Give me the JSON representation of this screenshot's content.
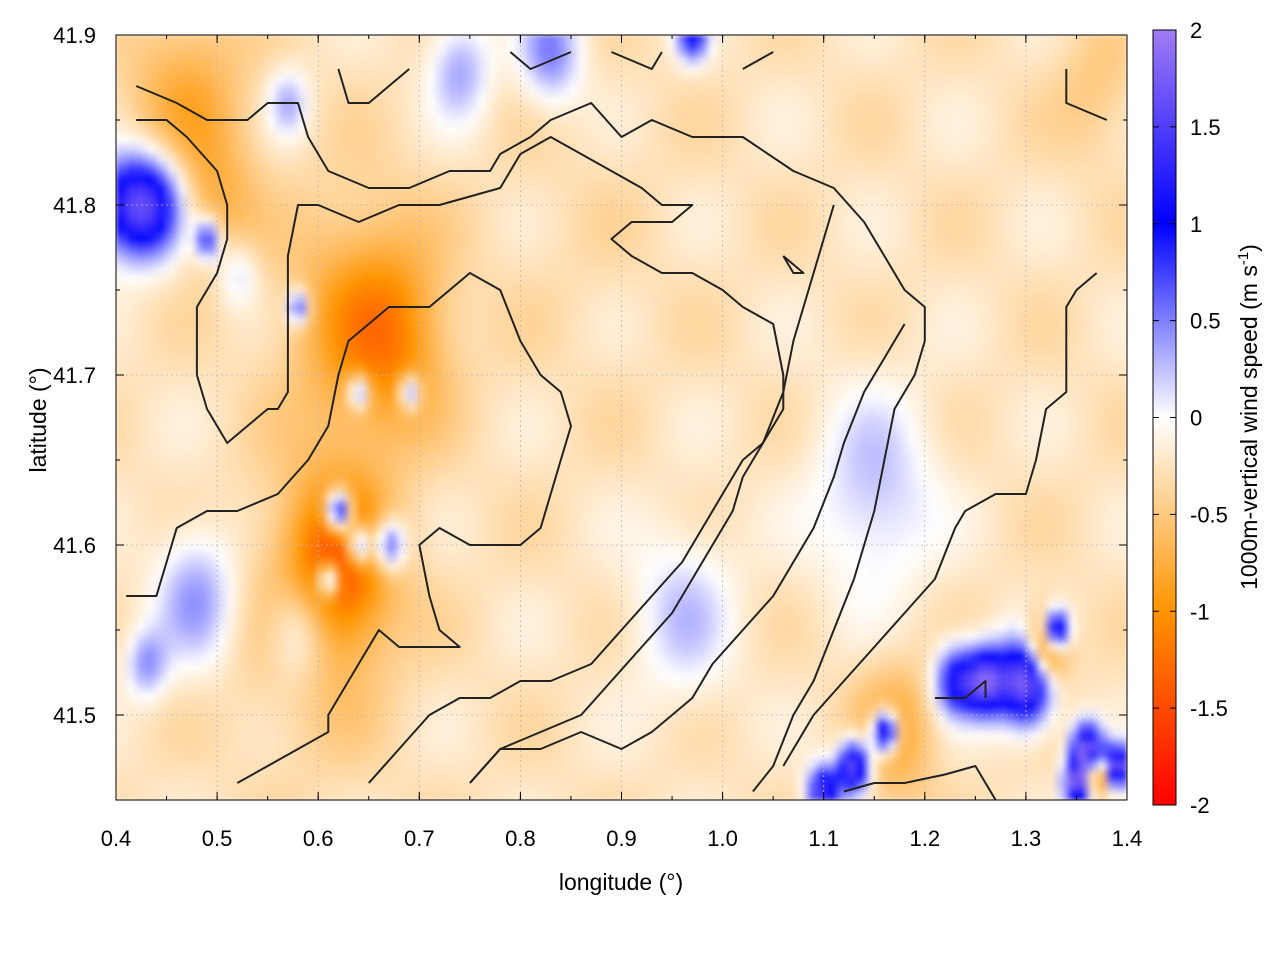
{
  "chart_data": {
    "type": "heatmap",
    "xlabel": "longitude (°)",
    "ylabel": "latitude (°)",
    "colorbar_label": "1000m-vertical wind speed (m s",
    "colorbar_label_superscript": "-1",
    "colorbar_label_suffix": ")",
    "xlim": [
      0.4,
      1.4
    ],
    "ylim": [
      41.45,
      41.9
    ],
    "clim": [
      -2,
      2
    ],
    "x_ticks": [
      "0.4",
      "0.5",
      "0.6",
      "0.7",
      "0.8",
      "0.9",
      "1.0",
      "1.1",
      "1.2",
      "1.3",
      "1.4"
    ],
    "x_tick_values": [
      0.4,
      0.5,
      0.6,
      0.7,
      0.8,
      0.9,
      1.0,
      1.1,
      1.2,
      1.3,
      1.4
    ],
    "y_ticks": [
      "41.5",
      "41.6",
      "41.7",
      "41.8",
      "41.9"
    ],
    "y_tick_values": [
      41.5,
      41.6,
      41.7,
      41.8,
      41.9
    ],
    "colorbar_ticks": [
      "2",
      "1.5",
      "1",
      "0.5",
      "0",
      "-0.5",
      "-1",
      "-1.5",
      "-2"
    ],
    "colorbar_tick_values": [
      2,
      1.5,
      1,
      0.5,
      0,
      -0.5,
      -1,
      -1.5,
      -2
    ],
    "grid": true,
    "colormap": [
      "#ff0000",
      "#ff9400",
      "#ffffff",
      "#0000ff",
      "#a07cf4"
    ],
    "background_value": -0.25,
    "anomalies": [
      {
        "lon": 0.47,
        "lat": 41.86,
        "r": 0.06,
        "v": -0.75
      },
      {
        "lon": 0.5,
        "lat": 41.8,
        "r": 0.04,
        "v": -0.6
      },
      {
        "lon": 0.64,
        "lat": 41.73,
        "r": 0.07,
        "v": -0.9
      },
      {
        "lon": 0.68,
        "lat": 41.72,
        "r": 0.05,
        "v": -0.7
      },
      {
        "lon": 0.62,
        "lat": 41.59,
        "r": 0.05,
        "v": -1.2
      },
      {
        "lon": 0.6,
        "lat": 41.56,
        "r": 0.08,
        "v": -0.6
      },
      {
        "lon": 0.85,
        "lat": 41.78,
        "r": 0.1,
        "v": -0.3
      },
      {
        "lon": 1.17,
        "lat": 41.49,
        "r": 0.04,
        "v": -0.8
      },
      {
        "lon": 1.32,
        "lat": 41.54,
        "r": 0.02,
        "v": -1.8
      },
      {
        "lon": 1.37,
        "lat": 41.87,
        "r": 0.04,
        "v": -0.5
      },
      {
        "lon": 0.44,
        "lat": 41.8,
        "r": 0.03,
        "v": 1.0
      },
      {
        "lon": 0.41,
        "lat": 41.8,
        "r": 0.03,
        "v": 1.1
      },
      {
        "lon": 0.49,
        "lat": 41.78,
        "r": 0.012,
        "v": 1.0
      },
      {
        "lon": 0.58,
        "lat": 41.74,
        "r": 0.01,
        "v": 0.9
      },
      {
        "lon": 0.64,
        "lat": 41.69,
        "r": 0.01,
        "v": 0.9
      },
      {
        "lon": 0.69,
        "lat": 41.69,
        "r": 0.01,
        "v": 0.9
      },
      {
        "lon": 0.62,
        "lat": 41.62,
        "r": 0.012,
        "v": 1.8
      },
      {
        "lon": 0.67,
        "lat": 41.6,
        "r": 0.015,
        "v": 1.0
      },
      {
        "lon": 0.64,
        "lat": 41.6,
        "r": 0.012,
        "v": 1.2
      },
      {
        "lon": 0.61,
        "lat": 41.58,
        "r": 0.01,
        "v": 1.2
      },
      {
        "lon": 0.48,
        "lat": 41.57,
        "r": 0.04,
        "v": 0.4
      },
      {
        "lon": 0.58,
        "lat": 41.55,
        "r": 0.03,
        "v": 0.4
      },
      {
        "lon": 0.43,
        "lat": 41.53,
        "r": 0.02,
        "v": 0.4
      },
      {
        "lon": 0.52,
        "lat": 41.76,
        "r": 0.02,
        "v": 0.2
      },
      {
        "lon": 0.96,
        "lat": 41.56,
        "r": 0.05,
        "v": 0.2
      },
      {
        "lon": 1.15,
        "lat": 41.63,
        "r": 0.06,
        "v": 0.25
      },
      {
        "lon": 0.83,
        "lat": 41.89,
        "r": 0.03,
        "v": 0.5
      },
      {
        "lon": 0.74,
        "lat": 41.88,
        "r": 0.03,
        "v": 0.35
      },
      {
        "lon": 0.57,
        "lat": 41.86,
        "r": 0.02,
        "v": 0.3
      },
      {
        "lon": 0.97,
        "lat": 41.9,
        "r": 0.015,
        "v": 1.0
      },
      {
        "lon": 1.23,
        "lat": 41.52,
        "r": 0.02,
        "v": 1.1
      },
      {
        "lon": 1.26,
        "lat": 41.52,
        "r": 0.02,
        "v": 1.6
      },
      {
        "lon": 1.3,
        "lat": 41.52,
        "r": 0.025,
        "v": 1.9
      },
      {
        "lon": 1.33,
        "lat": 41.55,
        "r": 0.012,
        "v": 1.9
      },
      {
        "lon": 1.16,
        "lat": 41.49,
        "r": 0.012,
        "v": 1.9
      },
      {
        "lon": 1.13,
        "lat": 41.47,
        "r": 0.015,
        "v": 1.8
      },
      {
        "lon": 1.1,
        "lat": 41.455,
        "r": 0.015,
        "v": 1.5
      },
      {
        "lon": 1.36,
        "lat": 41.48,
        "r": 0.015,
        "v": 1.9
      },
      {
        "lon": 1.39,
        "lat": 41.47,
        "r": 0.012,
        "v": 1.9
      },
      {
        "lon": 1.35,
        "lat": 41.46,
        "r": 0.012,
        "v": 1.9
      },
      {
        "lon": 1.37,
        "lat": 41.465,
        "r": 0.01,
        "v": -1.6
      }
    ],
    "contours": [
      [
        [
          0.42,
          41.87
        ],
        [
          0.46,
          41.86
        ],
        [
          0.49,
          41.85
        ],
        [
          0.53,
          41.85
        ],
        [
          0.55,
          41.86
        ],
        [
          0.58,
          41.86
        ],
        [
          0.59,
          41.84
        ],
        [
          0.61,
          41.82
        ],
        [
          0.65,
          41.81
        ],
        [
          0.69,
          41.81
        ],
        [
          0.73,
          41.82
        ],
        [
          0.77,
          41.82
        ],
        [
          0.78,
          41.83
        ],
        [
          0.81,
          41.84
        ],
        [
          0.83,
          41.85
        ],
        [
          0.87,
          41.86
        ],
        [
          0.9,
          41.84
        ],
        [
          0.93,
          41.85
        ],
        [
          0.97,
          41.84
        ],
        [
          1.02,
          41.84
        ],
        [
          1.07,
          41.82
        ],
        [
          1.11,
          41.81
        ],
        [
          1.14,
          41.79
        ],
        [
          1.16,
          41.77
        ],
        [
          1.18,
          41.75
        ],
        [
          1.2,
          41.74
        ],
        [
          1.2,
          41.72
        ],
        [
          1.19,
          41.7
        ],
        [
          1.17,
          41.68
        ],
        [
          1.16,
          41.65
        ],
        [
          1.15,
          41.62
        ],
        [
          1.13,
          41.58
        ],
        [
          1.11,
          41.55
        ],
        [
          1.09,
          41.52
        ],
        [
          1.07,
          41.5
        ],
        [
          1.05,
          41.47
        ],
        [
          1.03,
          41.455
        ]
      ],
      [
        [
          0.42,
          41.85
        ],
        [
          0.45,
          41.85
        ],
        [
          0.47,
          41.84
        ],
        [
          0.5,
          41.82
        ],
        [
          0.51,
          41.8
        ],
        [
          0.51,
          41.78
        ],
        [
          0.5,
          41.76
        ],
        [
          0.48,
          41.74
        ],
        [
          0.48,
          41.72
        ],
        [
          0.48,
          41.7
        ],
        [
          0.49,
          41.68
        ],
        [
          0.51,
          41.66
        ],
        [
          0.53,
          41.67
        ],
        [
          0.55,
          41.68
        ],
        [
          0.56,
          41.68
        ],
        [
          0.57,
          41.69
        ],
        [
          0.57,
          41.71
        ],
        [
          0.57,
          41.74
        ],
        [
          0.57,
          41.77
        ],
        [
          0.58,
          41.8
        ],
        [
          0.6,
          41.8
        ],
        [
          0.64,
          41.79
        ],
        [
          0.68,
          41.8
        ],
        [
          0.72,
          41.8
        ],
        [
          0.78,
          41.81
        ],
        [
          0.8,
          41.83
        ],
        [
          0.83,
          41.84
        ],
        [
          0.86,
          41.83
        ],
        [
          0.89,
          41.82
        ],
        [
          0.92,
          41.81
        ],
        [
          0.94,
          41.8
        ],
        [
          0.97,
          41.8
        ],
        [
          0.95,
          41.79
        ],
        [
          0.91,
          41.79
        ],
        [
          0.89,
          41.78
        ],
        [
          0.91,
          41.77
        ],
        [
          0.94,
          41.76
        ],
        [
          0.97,
          41.76
        ],
        [
          1.0,
          41.75
        ],
        [
          1.02,
          41.74
        ],
        [
          1.05,
          41.73
        ],
        [
          1.06,
          41.7
        ],
        [
          1.06,
          41.68
        ],
        [
          1.04,
          41.66
        ],
        [
          1.02,
          41.64
        ],
        [
          1.01,
          41.62
        ],
        [
          0.99,
          41.6
        ],
        [
          0.97,
          41.58
        ],
        [
          0.95,
          41.56
        ],
        [
          0.92,
          41.54
        ],
        [
          0.89,
          41.52
        ],
        [
          0.86,
          41.5
        ],
        [
          0.82,
          41.49
        ],
        [
          0.78,
          41.48
        ],
        [
          0.75,
          41.46
        ]
      ],
      [
        [
          0.41,
          41.57
        ],
        [
          0.44,
          41.57
        ],
        [
          0.45,
          41.59
        ],
        [
          0.46,
          41.61
        ],
        [
          0.49,
          41.62
        ],
        [
          0.52,
          41.62
        ],
        [
          0.56,
          41.63
        ],
        [
          0.59,
          41.65
        ],
        [
          0.61,
          41.67
        ],
        [
          0.62,
          41.7
        ],
        [
          0.63,
          41.72
        ],
        [
          0.67,
          41.74
        ],
        [
          0.71,
          41.74
        ],
        [
          0.75,
          41.76
        ],
        [
          0.78,
          41.75
        ],
        [
          0.8,
          41.72
        ],
        [
          0.82,
          41.7
        ],
        [
          0.84,
          41.69
        ],
        [
          0.85,
          41.67
        ],
        [
          0.84,
          41.65
        ],
        [
          0.83,
          41.63
        ],
        [
          0.82,
          41.61
        ],
        [
          0.8,
          41.6
        ],
        [
          0.75,
          41.6
        ],
        [
          0.72,
          41.61
        ],
        [
          0.7,
          41.6
        ],
        [
          0.71,
          41.57
        ],
        [
          0.72,
          41.55
        ],
        [
          0.74,
          41.54
        ],
        [
          0.72,
          41.54
        ],
        [
          0.68,
          41.54
        ],
        [
          0.66,
          41.55
        ],
        [
          0.64,
          41.53
        ],
        [
          0.62,
          41.51
        ],
        [
          0.61,
          41.5
        ],
        [
          0.61,
          41.49
        ],
        [
          0.58,
          41.48
        ],
        [
          0.55,
          41.47
        ],
        [
          0.52,
          41.46
        ]
      ],
      [
        [
          0.65,
          41.46
        ],
        [
          0.68,
          41.48
        ],
        [
          0.71,
          41.5
        ],
        [
          0.74,
          41.51
        ],
        [
          0.77,
          41.51
        ],
        [
          0.8,
          41.52
        ],
        [
          0.83,
          41.52
        ],
        [
          0.87,
          41.53
        ],
        [
          0.9,
          41.55
        ],
        [
          0.93,
          41.57
        ],
        [
          0.96,
          41.59
        ],
        [
          0.98,
          41.61
        ],
        [
          1.0,
          41.63
        ],
        [
          1.02,
          41.65
        ],
        [
          1.04,
          41.66
        ],
        [
          1.06,
          41.69
        ],
        [
          1.07,
          41.72
        ],
        [
          1.08,
          41.74
        ],
        [
          1.09,
          41.76
        ],
        [
          1.1,
          41.78
        ],
        [
          1.11,
          41.8
        ]
      ],
      [
        [
          0.75,
          41.46
        ],
        [
          0.78,
          41.48
        ],
        [
          0.82,
          41.48
        ],
        [
          0.86,
          41.49
        ],
        [
          0.9,
          41.48
        ],
        [
          0.93,
          41.49
        ],
        [
          0.95,
          41.5
        ],
        [
          0.97,
          41.51
        ],
        [
          0.99,
          41.53
        ],
        [
          1.02,
          41.55
        ],
        [
          1.05,
          41.57
        ],
        [
          1.07,
          41.59
        ],
        [
          1.09,
          41.61
        ],
        [
          1.11,
          41.64
        ],
        [
          1.12,
          41.66
        ],
        [
          1.14,
          41.69
        ],
        [
          1.16,
          41.71
        ],
        [
          1.18,
          41.73
        ]
      ],
      [
        [
          1.06,
          41.77
        ],
        [
          1.08,
          41.76
        ],
        [
          1.07,
          41.76
        ],
        [
          1.06,
          41.77
        ]
      ],
      [
        [
          1.12,
          41.455
        ],
        [
          1.15,
          41.46
        ],
        [
          1.18,
          41.46
        ],
        [
          1.22,
          41.465
        ],
        [
          1.25,
          41.47
        ],
        [
          1.27,
          41.45
        ]
      ],
      [
        [
          1.06,
          41.47
        ],
        [
          1.09,
          41.5
        ],
        [
          1.12,
          41.52
        ],
        [
          1.15,
          41.54
        ],
        [
          1.18,
          41.56
        ],
        [
          1.21,
          41.58
        ],
        [
          1.23,
          41.61
        ],
        [
          1.24,
          41.62
        ],
        [
          1.27,
          41.63
        ],
        [
          1.3,
          41.63
        ],
        [
          1.31,
          41.65
        ],
        [
          1.32,
          41.68
        ],
        [
          1.34,
          41.69
        ],
        [
          1.34,
          41.72
        ],
        [
          1.34,
          41.74
        ],
        [
          1.35,
          41.75
        ],
        [
          1.37,
          41.76
        ]
      ],
      [
        [
          1.34,
          41.88
        ],
        [
          1.34,
          41.86
        ],
        [
          1.38,
          41.85
        ]
      ],
      [
        [
          0.62,
          41.88
        ],
        [
          0.63,
          41.86
        ],
        [
          0.65,
          41.86
        ],
        [
          0.67,
          41.87
        ],
        [
          0.69,
          41.88
        ]
      ],
      [
        [
          0.79,
          41.89
        ],
        [
          0.81,
          41.88
        ],
        [
          0.85,
          41.89
        ]
      ],
      [
        [
          0.89,
          41.89
        ],
        [
          0.93,
          41.88
        ],
        [
          0.94,
          41.89
        ]
      ],
      [
        [
          1.02,
          41.88
        ],
        [
          1.05,
          41.89
        ]
      ],
      [
        [
          1.21,
          41.51
        ],
        [
          1.24,
          41.51
        ],
        [
          1.26,
          41.52
        ],
        [
          1.26,
          41.51
        ]
      ]
    ]
  }
}
